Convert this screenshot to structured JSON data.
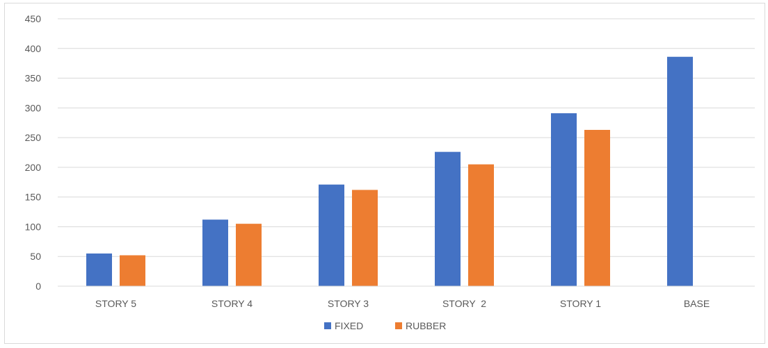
{
  "chart_data": {
    "type": "bar",
    "title": "",
    "xlabel": "",
    "ylabel": "",
    "categories": [
      "STORY 5",
      "STORY 4",
      "STORY 3",
      "STORY  2",
      "STORY 1",
      "BASE"
    ],
    "series": [
      {
        "name": "FIXED",
        "color": "#4472c4",
        "values": [
          55,
          112,
          171,
          226,
          291,
          386
        ]
      },
      {
        "name": "RUBBER",
        "color": "#ed7d31",
        "values": [
          52,
          105,
          162,
          205,
          263,
          0
        ]
      }
    ],
    "ylim": [
      0,
      450
    ],
    "yticks": [
      0,
      50,
      100,
      150,
      200,
      250,
      300,
      350,
      400,
      450
    ],
    "grid": true,
    "legend": "bottom-center"
  }
}
